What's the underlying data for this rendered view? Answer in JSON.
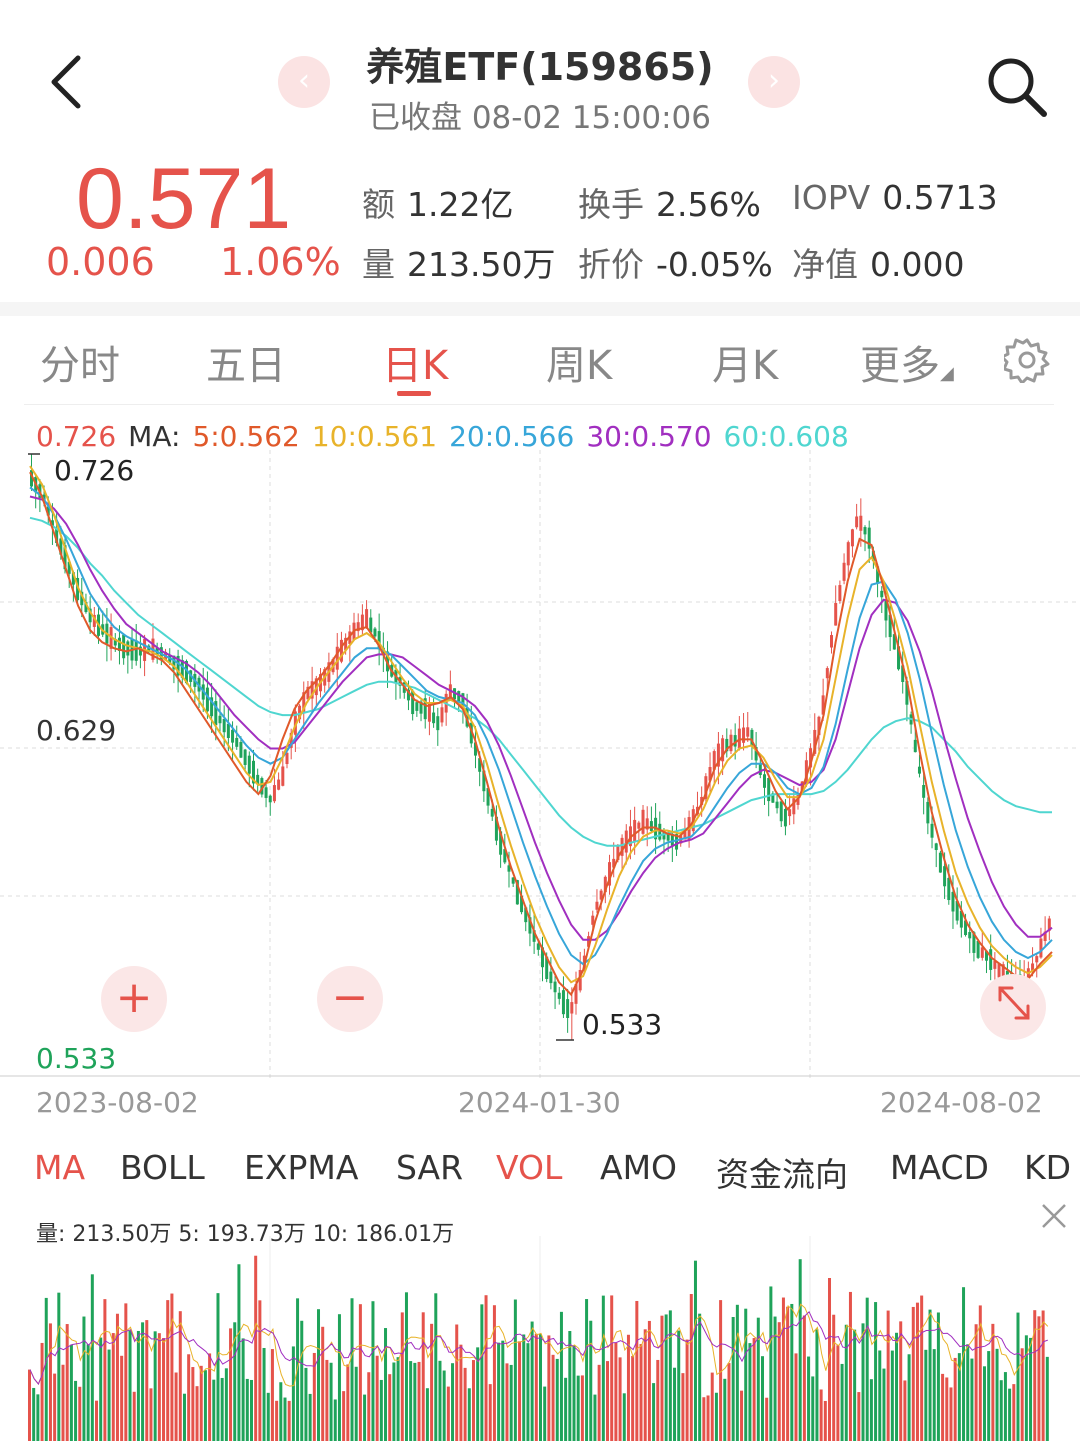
{
  "header": {
    "title": "养殖ETF(159865)",
    "subtitle": "已收盘 08-02 15:00:06",
    "back_icon": "chevron-left-icon",
    "search_icon": "search-icon"
  },
  "quote": {
    "price": "0.571",
    "change": "0.006",
    "change_pct": "1.06%",
    "stats": [
      {
        "key": "额",
        "value": "1.22亿"
      },
      {
        "key": "换手",
        "value": "2.56%"
      },
      {
        "key": "IOPV",
        "value": "0.5713"
      },
      {
        "key": "量",
        "value": "213.50万"
      },
      {
        "key": "折价",
        "value": "-0.05%"
      },
      {
        "key": "净值",
        "value": "0.000"
      }
    ]
  },
  "tabs": [
    "分时",
    "五日",
    "日K",
    "周K",
    "月K",
    "更多"
  ],
  "active_tab": "日K",
  "ma_legend": {
    "high": "0.726",
    "label": "MA:",
    "ma5": "5:0.562",
    "ma10": "10:0.561",
    "ma20": "20:0.566",
    "ma30": "30:0.570",
    "ma60": "60:0.608"
  },
  "colors": {
    "up": "#e5534b",
    "down": "#1fa35a",
    "ma5": "#e0592a",
    "ma10": "#e8b32a",
    "ma20": "#37a6d9",
    "ma30": "#a12fc0",
    "ma60": "#4fd6d0"
  },
  "price_axis": {
    "top": "0.726",
    "mid": "0.629",
    "bottom": "0.533"
  },
  "annotations": {
    "high": "0.726",
    "low": "0.533"
  },
  "dates": [
    "2023-08-02",
    "2024-01-30",
    "2024-08-02"
  ],
  "zoom": {
    "plus": "+",
    "minus": "−"
  },
  "indicators": [
    "MA",
    "BOLL",
    "EXPMA",
    "SAR",
    "VOL",
    "AMO",
    "资金流向",
    "MACD",
    "KD"
  ],
  "active_indicators": [
    "MA",
    "VOL"
  ],
  "volume_legend": "量: 213.50万  5: 193.73万  10: 186.01万",
  "chart_data": {
    "type": "candlestick",
    "period": "daily",
    "x_range": [
      "2023-08-02",
      "2024-08-02"
    ],
    "ylim": [
      0.533,
      0.726
    ],
    "ma_path_points": {
      "close": [
        0.718,
        0.712,
        0.7,
        0.69,
        0.68,
        0.672,
        0.668,
        0.664,
        0.662,
        0.661,
        0.662,
        0.66,
        0.657,
        0.654,
        0.65,
        0.643,
        0.637,
        0.632,
        0.625,
        0.618,
        0.612,
        0.62,
        0.637,
        0.647,
        0.65,
        0.655,
        0.662,
        0.668,
        0.672,
        0.665,
        0.655,
        0.65,
        0.643,
        0.642,
        0.637,
        0.648,
        0.645,
        0.63,
        0.615,
        0.6,
        0.588,
        0.577,
        0.567,
        0.557,
        0.548,
        0.542,
        0.555,
        0.575,
        0.585,
        0.595,
        0.6,
        0.605,
        0.603,
        0.6,
        0.598,
        0.603,
        0.612,
        0.625,
        0.63,
        0.632,
        0.635,
        0.62,
        0.612,
        0.606,
        0.612,
        0.625,
        0.64,
        0.67,
        0.69,
        0.705,
        0.698,
        0.68,
        0.665,
        0.65,
        0.625,
        0.605,
        0.59,
        0.578,
        0.57,
        0.563,
        0.56,
        0.555,
        0.553,
        0.552,
        0.56,
        0.571
      ],
      "ma5": [
        0.72,
        0.712,
        0.7,
        0.688,
        0.676,
        0.668,
        0.664,
        0.662,
        0.661,
        0.662,
        0.66,
        0.658,
        0.654,
        0.648,
        0.642,
        0.636,
        0.63,
        0.624,
        0.618,
        0.614,
        0.62,
        0.632,
        0.642,
        0.648,
        0.652,
        0.657,
        0.663,
        0.668,
        0.669,
        0.663,
        0.655,
        0.65,
        0.645,
        0.643,
        0.644,
        0.646,
        0.642,
        0.632,
        0.618,
        0.603,
        0.59,
        0.579,
        0.568,
        0.56,
        0.552,
        0.548,
        0.556,
        0.572,
        0.584,
        0.594,
        0.6,
        0.603,
        0.603,
        0.601,
        0.6,
        0.604,
        0.612,
        0.623,
        0.629,
        0.632,
        0.632,
        0.624,
        0.615,
        0.609,
        0.613,
        0.625,
        0.64,
        0.664,
        0.684,
        0.698,
        0.696,
        0.682,
        0.666,
        0.65,
        0.628,
        0.608,
        0.593,
        0.58,
        0.571,
        0.565,
        0.56,
        0.557,
        0.554,
        0.553,
        0.558,
        0.562
      ],
      "ma10": [
        0.722,
        0.716,
        0.706,
        0.694,
        0.682,
        0.674,
        0.668,
        0.665,
        0.663,
        0.662,
        0.661,
        0.659,
        0.656,
        0.651,
        0.645,
        0.639,
        0.633,
        0.627,
        0.621,
        0.617,
        0.618,
        0.626,
        0.636,
        0.644,
        0.65,
        0.655,
        0.66,
        0.665,
        0.667,
        0.664,
        0.658,
        0.652,
        0.647,
        0.644,
        0.644,
        0.645,
        0.643,
        0.636,
        0.624,
        0.61,
        0.597,
        0.585,
        0.574,
        0.565,
        0.557,
        0.552,
        0.554,
        0.564,
        0.576,
        0.587,
        0.595,
        0.6,
        0.602,
        0.602,
        0.601,
        0.603,
        0.609,
        0.618,
        0.625,
        0.629,
        0.63,
        0.626,
        0.619,
        0.613,
        0.613,
        0.62,
        0.632,
        0.652,
        0.672,
        0.688,
        0.692,
        0.684,
        0.671,
        0.656,
        0.637,
        0.618,
        0.602,
        0.588,
        0.578,
        0.57,
        0.564,
        0.56,
        0.557,
        0.555,
        0.557,
        0.561
      ],
      "ma20": [
        0.715,
        0.712,
        0.706,
        0.698,
        0.689,
        0.68,
        0.674,
        0.669,
        0.666,
        0.664,
        0.662,
        0.66,
        0.658,
        0.655,
        0.65,
        0.645,
        0.64,
        0.635,
        0.63,
        0.626,
        0.624,
        0.626,
        0.632,
        0.638,
        0.644,
        0.649,
        0.654,
        0.659,
        0.662,
        0.662,
        0.66,
        0.656,
        0.652,
        0.648,
        0.646,
        0.645,
        0.644,
        0.64,
        0.632,
        0.622,
        0.61,
        0.598,
        0.587,
        0.577,
        0.568,
        0.561,
        0.558,
        0.561,
        0.568,
        0.577,
        0.585,
        0.592,
        0.596,
        0.598,
        0.599,
        0.6,
        0.604,
        0.61,
        0.616,
        0.621,
        0.624,
        0.624,
        0.621,
        0.616,
        0.614,
        0.616,
        0.623,
        0.637,
        0.655,
        0.672,
        0.683,
        0.684,
        0.678,
        0.667,
        0.652,
        0.634,
        0.617,
        0.602,
        0.59,
        0.58,
        0.572,
        0.566,
        0.562,
        0.56,
        0.562,
        0.566
      ],
      "ma30": [
        0.712,
        0.711,
        0.708,
        0.703,
        0.696,
        0.688,
        0.681,
        0.675,
        0.67,
        0.667,
        0.664,
        0.661,
        0.659,
        0.657,
        0.654,
        0.65,
        0.645,
        0.64,
        0.636,
        0.632,
        0.629,
        0.629,
        0.631,
        0.636,
        0.641,
        0.646,
        0.651,
        0.655,
        0.659,
        0.66,
        0.66,
        0.659,
        0.656,
        0.653,
        0.65,
        0.648,
        0.646,
        0.643,
        0.638,
        0.63,
        0.62,
        0.609,
        0.598,
        0.588,
        0.579,
        0.571,
        0.566,
        0.566,
        0.569,
        0.575,
        0.582,
        0.588,
        0.593,
        0.596,
        0.598,
        0.599,
        0.601,
        0.606,
        0.611,
        0.616,
        0.62,
        0.622,
        0.621,
        0.619,
        0.617,
        0.618,
        0.622,
        0.632,
        0.647,
        0.662,
        0.673,
        0.678,
        0.677,
        0.671,
        0.661,
        0.648,
        0.633,
        0.619,
        0.606,
        0.595,
        0.585,
        0.577,
        0.571,
        0.567,
        0.567,
        0.57
      ],
      "ma60": [
        0.705,
        0.704,
        0.702,
        0.699,
        0.695,
        0.69,
        0.686,
        0.681,
        0.677,
        0.673,
        0.67,
        0.667,
        0.664,
        0.661,
        0.658,
        0.655,
        0.652,
        0.649,
        0.646,
        0.643,
        0.641,
        0.64,
        0.64,
        0.641,
        0.642,
        0.644,
        0.646,
        0.648,
        0.65,
        0.651,
        0.651,
        0.65,
        0.649,
        0.647,
        0.645,
        0.643,
        0.641,
        0.639,
        0.636,
        0.632,
        0.627,
        0.622,
        0.617,
        0.612,
        0.607,
        0.603,
        0.6,
        0.598,
        0.597,
        0.597,
        0.598,
        0.599,
        0.6,
        0.601,
        0.602,
        0.603,
        0.604,
        0.606,
        0.608,
        0.61,
        0.612,
        0.613,
        0.614,
        0.614,
        0.614,
        0.614,
        0.615,
        0.618,
        0.622,
        0.627,
        0.632,
        0.636,
        0.638,
        0.639,
        0.638,
        0.636,
        0.632,
        0.628,
        0.623,
        0.619,
        0.615,
        0.612,
        0.61,
        0.609,
        0.608,
        0.608
      ]
    }
  }
}
